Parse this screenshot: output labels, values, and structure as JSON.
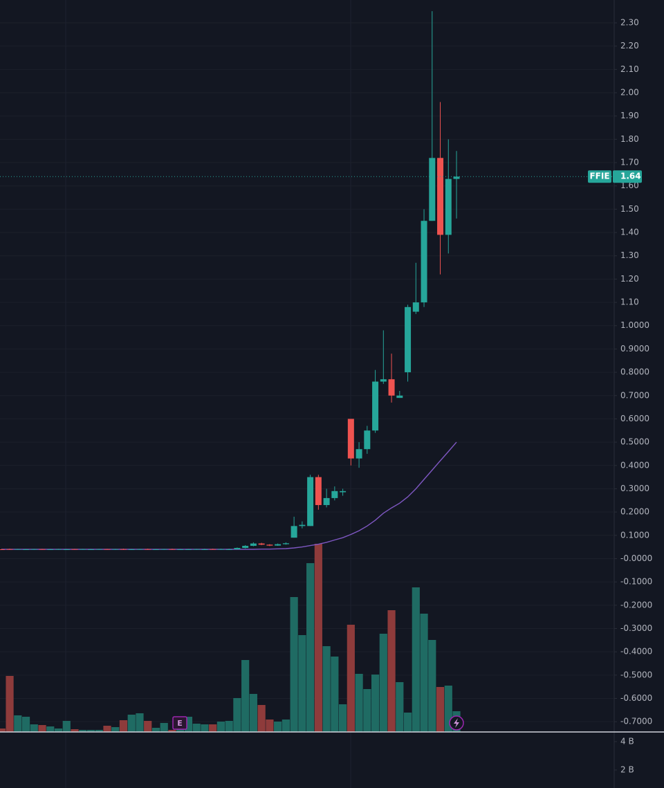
{
  "chart_data": {
    "type": "candlestick",
    "symbol": "FFIE",
    "last_price": 1.64,
    "earnings_label": "E",
    "up_color": "#26a69a",
    "down_color": "#ef5350",
    "volume_up_color": "#1f6b63",
    "volume_down_color": "#8e3b3b",
    "ma_color": "#7e57c2",
    "grid": true,
    "ylim": [
      -0.744,
      2.398
    ],
    "yticks": [
      {
        "value": 2.3,
        "label": "2.30"
      },
      {
        "value": 2.2,
        "label": "2.20"
      },
      {
        "value": 2.1,
        "label": "2.10"
      },
      {
        "value": 2,
        "label": "2.00"
      },
      {
        "value": 1.9,
        "label": "1.90"
      },
      {
        "value": 1.8,
        "label": "1.80"
      },
      {
        "value": 1.7,
        "label": "1.70"
      },
      {
        "value": 1.6,
        "label": "1.60"
      },
      {
        "value": 1.5,
        "label": "1.50"
      },
      {
        "value": 1.4,
        "label": "1.40"
      },
      {
        "value": 1.3,
        "label": "1.30"
      },
      {
        "value": 1.2,
        "label": "1.20"
      },
      {
        "value": 1.1,
        "label": "1.10"
      },
      {
        "value": 1,
        "label": "1.0000"
      },
      {
        "value": 0.9,
        "label": "0.9000"
      },
      {
        "value": 0.8,
        "label": "0.8000"
      },
      {
        "value": 0.7,
        "label": "0.7000"
      },
      {
        "value": 0.6,
        "label": "0.6000"
      },
      {
        "value": 0.5,
        "label": "0.5000"
      },
      {
        "value": 0.4,
        "label": "0.4000"
      },
      {
        "value": 0.3,
        "label": "0.3000"
      },
      {
        "value": 0.2,
        "label": "0.2000"
      },
      {
        "value": 0.1,
        "label": "0.1000"
      },
      {
        "value": 0,
        "label": "-0.0000"
      },
      {
        "value": -0.1,
        "label": "-0.1000"
      },
      {
        "value": -0.2,
        "label": "-0.2000"
      },
      {
        "value": -0.3,
        "label": "-0.3000"
      },
      {
        "value": -0.4,
        "label": "-0.4000"
      },
      {
        "value": -0.5,
        "label": "-0.5000"
      },
      {
        "value": -0.6,
        "label": "-0.6000"
      },
      {
        "value": -0.7,
        "label": "-0.7000"
      }
    ],
    "open": [
      0.04,
      0.041,
      0.04,
      0.04,
      0.04,
      0.041,
      0.04,
      0.04,
      0.04,
      0.041,
      0.04,
      0.04,
      0.04,
      0.041,
      0.04,
      0.041,
      0.039,
      0.04,
      0.041,
      0.04,
      0.04,
      0.041,
      0.039,
      0.04,
      0.04,
      0.04,
      0.041,
      0.04,
      0.04,
      0.04,
      0.046,
      0.055,
      0.065,
      0.06,
      0.056,
      0.062,
      0.09,
      0.14,
      0.14,
      0.35,
      0.23,
      0.26,
      0.285,
      0.6,
      0.43,
      0.47,
      0.55,
      0.76,
      0.77,
      0.69,
      0.8,
      1.06,
      1.1,
      1.45,
      1.72,
      1.39,
      1.63
    ],
    "high": [
      0.042,
      0.043,
      0.042,
      0.042,
      0.042,
      0.042,
      0.042,
      0.042,
      0.042,
      0.042,
      0.042,
      0.042,
      0.042,
      0.042,
      0.042,
      0.043,
      0.042,
      0.042,
      0.043,
      0.042,
      0.042,
      0.043,
      0.042,
      0.042,
      0.042,
      0.043,
      0.043,
      0.043,
      0.043,
      0.048,
      0.058,
      0.07,
      0.068,
      0.062,
      0.065,
      0.07,
      0.18,
      0.16,
      0.36,
      0.36,
      0.3,
      0.31,
      0.3,
      0.6,
      0.5,
      0.57,
      0.81,
      0.98,
      0.88,
      0.72,
      1.09,
      1.27,
      1.5,
      2.35,
      1.96,
      1.8,
      1.75
    ],
    "low": [
      0.038,
      0.038,
      0.038,
      0.038,
      0.038,
      0.038,
      0.038,
      0.038,
      0.038,
      0.038,
      0.038,
      0.038,
      0.038,
      0.038,
      0.038,
      0.038,
      0.038,
      0.038,
      0.038,
      0.038,
      0.038,
      0.038,
      0.038,
      0.038,
      0.038,
      0.038,
      0.039,
      0.039,
      0.039,
      0.039,
      0.044,
      0.053,
      0.058,
      0.054,
      0.055,
      0.06,
      0.09,
      0.13,
      0.14,
      0.21,
      0.22,
      0.25,
      0.27,
      0.4,
      0.39,
      0.45,
      0.54,
      0.75,
      0.67,
      0.69,
      0.76,
      1.05,
      1.08,
      1.45,
      1.22,
      1.31,
      1.46
    ],
    "close": [
      0.039,
      0.039,
      0.041,
      0.04,
      0.041,
      0.04,
      0.04,
      0.041,
      0.04,
      0.04,
      0.041,
      0.04,
      0.041,
      0.04,
      0.041,
      0.039,
      0.04,
      0.041,
      0.04,
      0.04,
      0.041,
      0.039,
      0.04,
      0.04,
      0.041,
      0.04,
      0.04,
      0.041,
      0.04,
      0.046,
      0.055,
      0.065,
      0.06,
      0.056,
      0.062,
      0.066,
      0.14,
      0.145,
      0.35,
      0.23,
      0.26,
      0.29,
      0.29,
      0.43,
      0.47,
      0.55,
      0.76,
      0.77,
      0.7,
      0.7,
      1.08,
      1.1,
      1.45,
      1.72,
      1.39,
      1.63,
      1.64
    ],
    "ma": [
      0.04,
      0.04,
      0.04,
      0.04,
      0.04,
      0.04,
      0.04,
      0.04,
      0.04,
      0.04,
      0.04,
      0.04,
      0.04,
      0.04,
      0.04,
      0.04,
      0.04,
      0.04,
      0.04,
      0.04,
      0.04,
      0.04,
      0.04,
      0.04,
      0.04,
      0.04,
      0.04,
      0.04,
      0.04,
      0.04,
      0.04,
      0.04,
      0.041,
      0.041,
      0.042,
      0.043,
      0.046,
      0.05,
      0.056,
      0.062,
      0.07,
      0.08,
      0.09,
      0.104,
      0.12,
      0.14,
      0.165,
      0.195,
      0.218,
      0.238,
      0.265,
      0.3,
      0.34,
      0.38,
      0.42,
      0.46,
      0.5
    ],
    "volume": [
      5,
      81,
      24,
      22,
      11,
      10,
      8,
      5,
      16,
      4,
      3,
      3,
      3,
      9,
      7,
      17,
      25,
      27,
      16,
      6,
      13,
      3,
      18,
      22,
      12,
      11,
      11,
      15,
      16,
      49,
      104,
      55,
      39,
      18,
      15,
      18,
      195,
      140,
      244,
      272,
      124,
      109,
      40,
      155,
      84,
      62,
      83,
      142,
      176,
      72,
      28,
      209,
      171,
      133,
      65,
      67,
      30
    ],
    "volume_lim": [
      0,
      280
    ],
    "volume_pane_lim": [
      0.73,
      4.68
    ],
    "volume_pane_ticks": [
      {
        "value": 4,
        "label": "4 B"
      },
      {
        "value": 2,
        "label": "2 B"
      }
    ]
  }
}
